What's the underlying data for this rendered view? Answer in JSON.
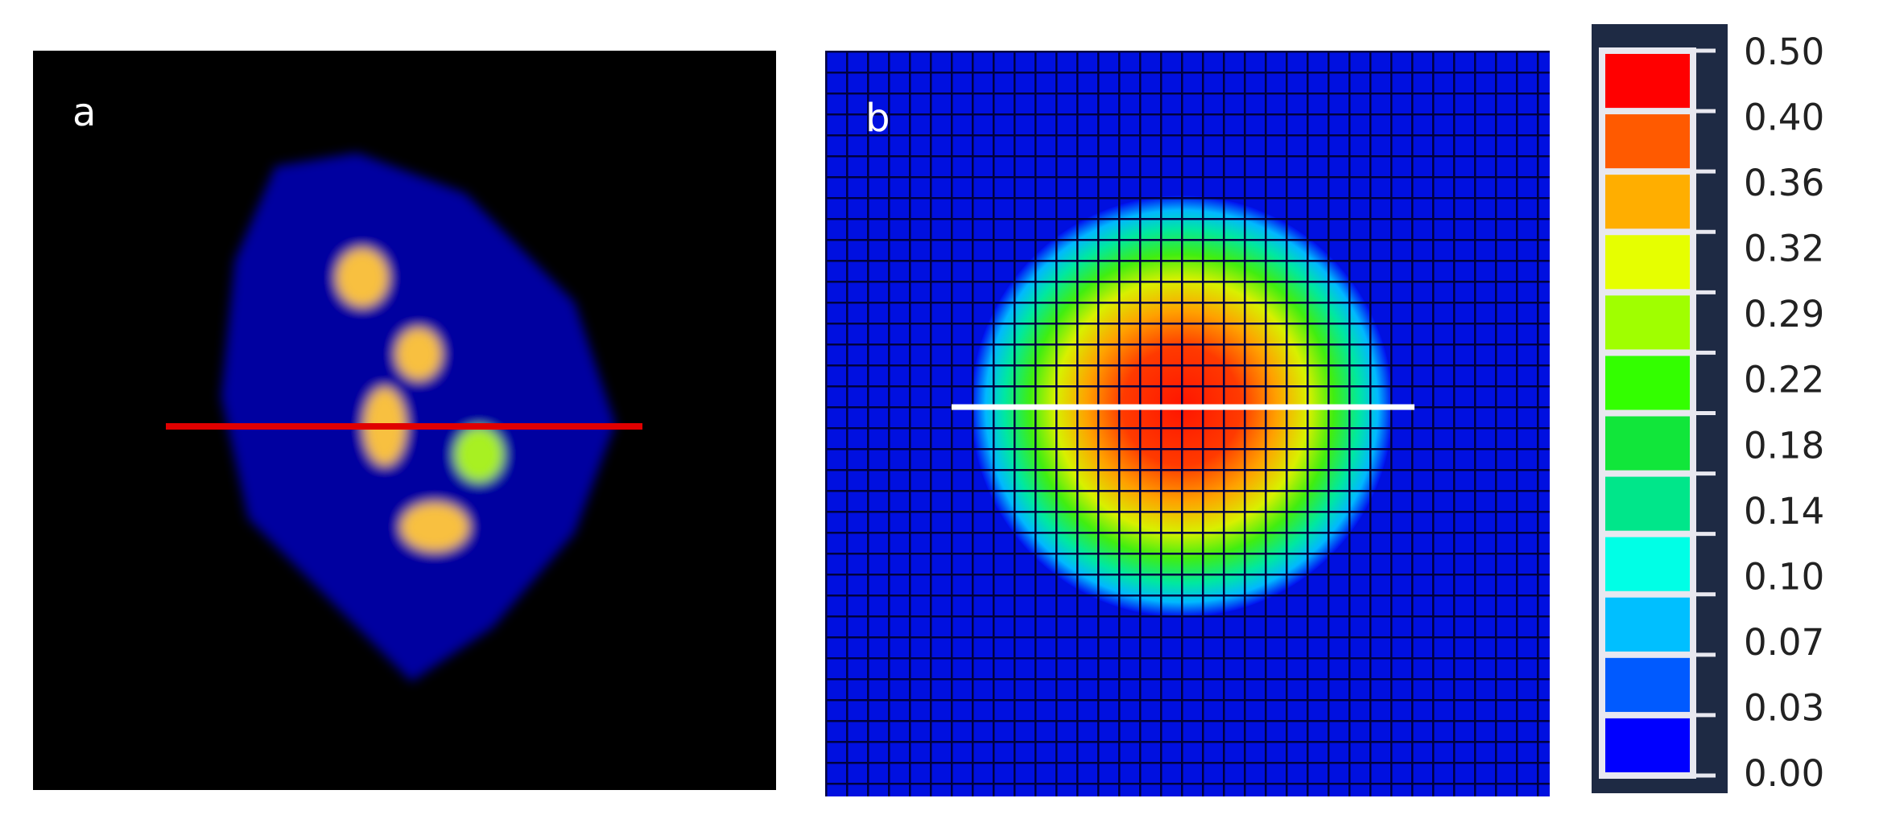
{
  "panels": [
    {
      "label": "a"
    },
    {
      "label": "b"
    }
  ],
  "colorbar": {
    "ticks": [
      "0.50",
      "0.40",
      "0.36",
      "0.32",
      "0.29",
      "0.22",
      "0.18",
      "0.14",
      "0.10",
      "0.07",
      "0.03",
      "0.00"
    ],
    "colors": [
      "#ff0000",
      "#ff5a00",
      "#ffae00",
      "#e6ff00",
      "#a0ff00",
      "#33ff00",
      "#11e63a",
      "#00e68a",
      "#00ffe6",
      "#00bfff",
      "#005aff",
      "#0000ff"
    ]
  }
}
